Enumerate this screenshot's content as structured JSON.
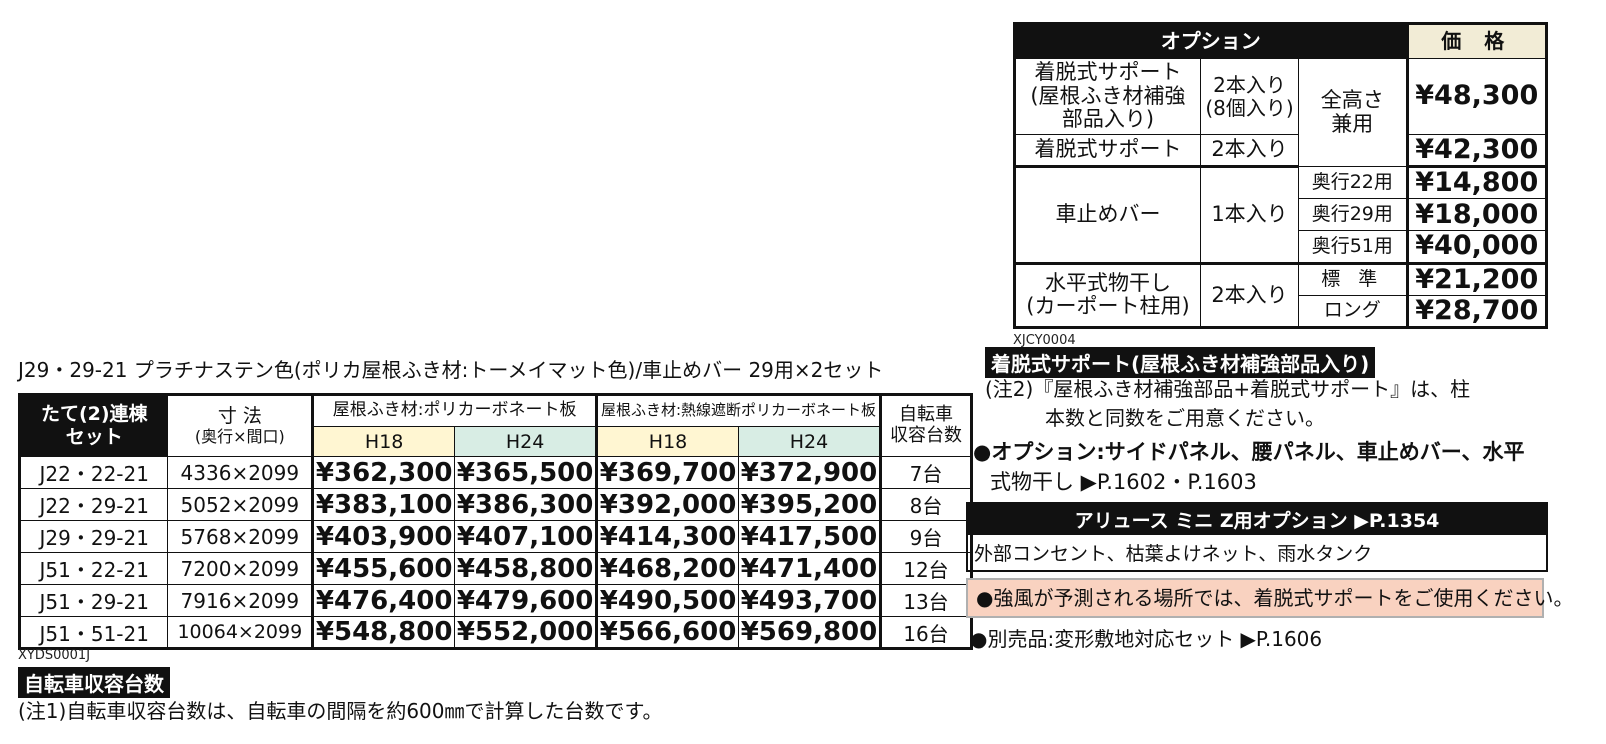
{
  "options": {
    "header_option": "オプション",
    "header_price": "価 格",
    "rows": {
      "support_reinforce_name": "着脱式サポート\n(屋根ふき材補強\n部品入り)",
      "support_reinforce_qty": "2本入り\n(8個入り)",
      "support_use": "全高さ\n兼用",
      "support_reinforce_price": "¥48,300",
      "support_name": "着脱式サポート",
      "support_qty": "2本入り",
      "support_price": "¥42,300",
      "stopbar_name": "車止めバー",
      "stopbar_qty": "1本入り",
      "stopbar_22": "奥行22用",
      "stopbar_22_price": "¥14,800",
      "stopbar_29": "奥行29用",
      "stopbar_29_price": "¥18,000",
      "stopbar_51": "奥行51用",
      "stopbar_51_price": "¥40,000",
      "dryer_name": "水平式物干し\n(カーポート柱用)",
      "dryer_qty": "2本入り",
      "dryer_std": "標 準",
      "dryer_std_price": "¥21,200",
      "dryer_long": "ロング",
      "dryer_long_price": "¥28,700"
    },
    "code": "XJCY0004"
  },
  "caption": "J29・29-21 プラチナステン色(ポリカ屋根ふき材:トーメイマット色)/車止めバー 29用×2セット",
  "main_table": {
    "h_set": "たて(2)連棟\nセット",
    "h_size": "寸 法",
    "h_size_sub": "(奥行×間口)",
    "h_group1": "屋根ふき材:ポリカーボネート板",
    "h_group2": "屋根ふき材:熱線遮断ポリカーボネート板",
    "h_h18": "H18",
    "h_h24": "H24",
    "h_bike": "自転車\n収容台数",
    "rows": [
      {
        "model": "J22・22-21",
        "size": "4336×2099",
        "p1": "¥362,300",
        "p2": "¥365,500",
        "p3": "¥369,700",
        "p4": "¥372,900",
        "bikes": "7台"
      },
      {
        "model": "J22・29-21",
        "size": "5052×2099",
        "p1": "¥383,100",
        "p2": "¥386,300",
        "p3": "¥392,000",
        "p4": "¥395,200",
        "bikes": "8台"
      },
      {
        "model": "J29・29-21",
        "size": "5768×2099",
        "p1": "¥403,900",
        "p2": "¥407,100",
        "p3": "¥414,300",
        "p4": "¥417,500",
        "bikes": "9台"
      },
      {
        "model": "J51・22-21",
        "size": "7200×2099",
        "p1": "¥455,600",
        "p2": "¥458,800",
        "p3": "¥468,200",
        "p4": "¥471,400",
        "bikes": "12台"
      },
      {
        "model": "J51・29-21",
        "size": "7916×2099",
        "p1": "¥476,400",
        "p2": "¥479,600",
        "p3": "¥490,500",
        "p4": "¥493,700",
        "bikes": "13台"
      },
      {
        "model": "J51・51-21",
        "size": "10064×2099",
        "p1": "¥548,800",
        "p2": "¥552,000",
        "p3": "¥566,600",
        "p4": "¥569,800",
        "bikes": "16台"
      }
    ],
    "code": "XYDS0001J"
  },
  "notes": {
    "bike_label": "自転車収容台数",
    "note1": "(注1)自転車収容台数は、自転車の間隔を約600㎜で計算した台数です。",
    "support_label": "着脱式サポート(屋根ふき材補強部品入り)",
    "note2_line1": "(注2)『屋根ふき材補強部品+着脱式サポート』は、柱",
    "note2_line2": "本数と同数をご用意ください。",
    "options_line1": "●オプション:サイドパネル、腰パネル、車止めバー、水平",
    "options_line2": "式物干し ▶P.1602・P.1603",
    "mini_header": "アリュース ミニ Z用オプション ▶P.1354",
    "mini_body": "外部コンセント、枯葉よけネット、雨水タンク",
    "warning": "●強風が予測される場所では、着脱式サポートをご使用ください。",
    "separate": "●別売品:変形敷地対応セット ▶P.1606"
  }
}
